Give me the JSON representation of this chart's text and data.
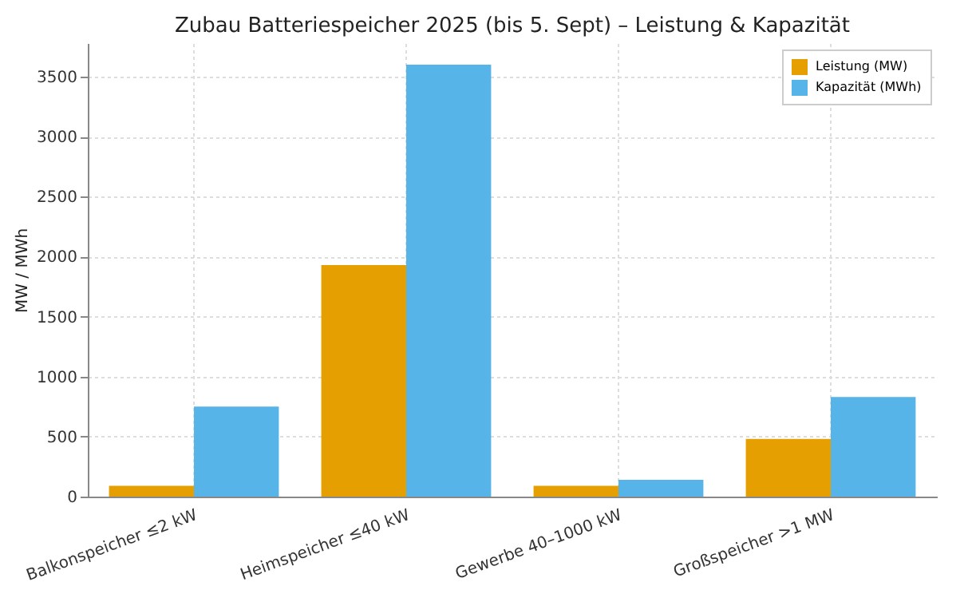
{
  "chart_data": {
    "type": "bar",
    "title": "Zubau Batteriespeicher 2025 (bis 5. Sept) – Leistung & Kapazität",
    "ylabel": "MW / MWh",
    "categories": [
      "Balkonspeicher ≤2 kW",
      "Heimspeicher ≤40 kW",
      "Gewerbe 40–1000 kW",
      "Großspeicher >1 MW"
    ],
    "series": [
      {
        "name": "Leistung (MW)",
        "color": "#e69f00",
        "values": [
          90,
          1930,
          90,
          480
        ]
      },
      {
        "name": "Kapazität (MWh)",
        "color": "#56b4e9",
        "values": [
          750,
          3600,
          140,
          830
        ]
      }
    ],
    "ylim": [
      0,
      3780
    ],
    "yticks": [
      0,
      500,
      1000,
      1500,
      2000,
      2500,
      3000,
      3500
    ],
    "grid": true,
    "legend": "top right"
  }
}
